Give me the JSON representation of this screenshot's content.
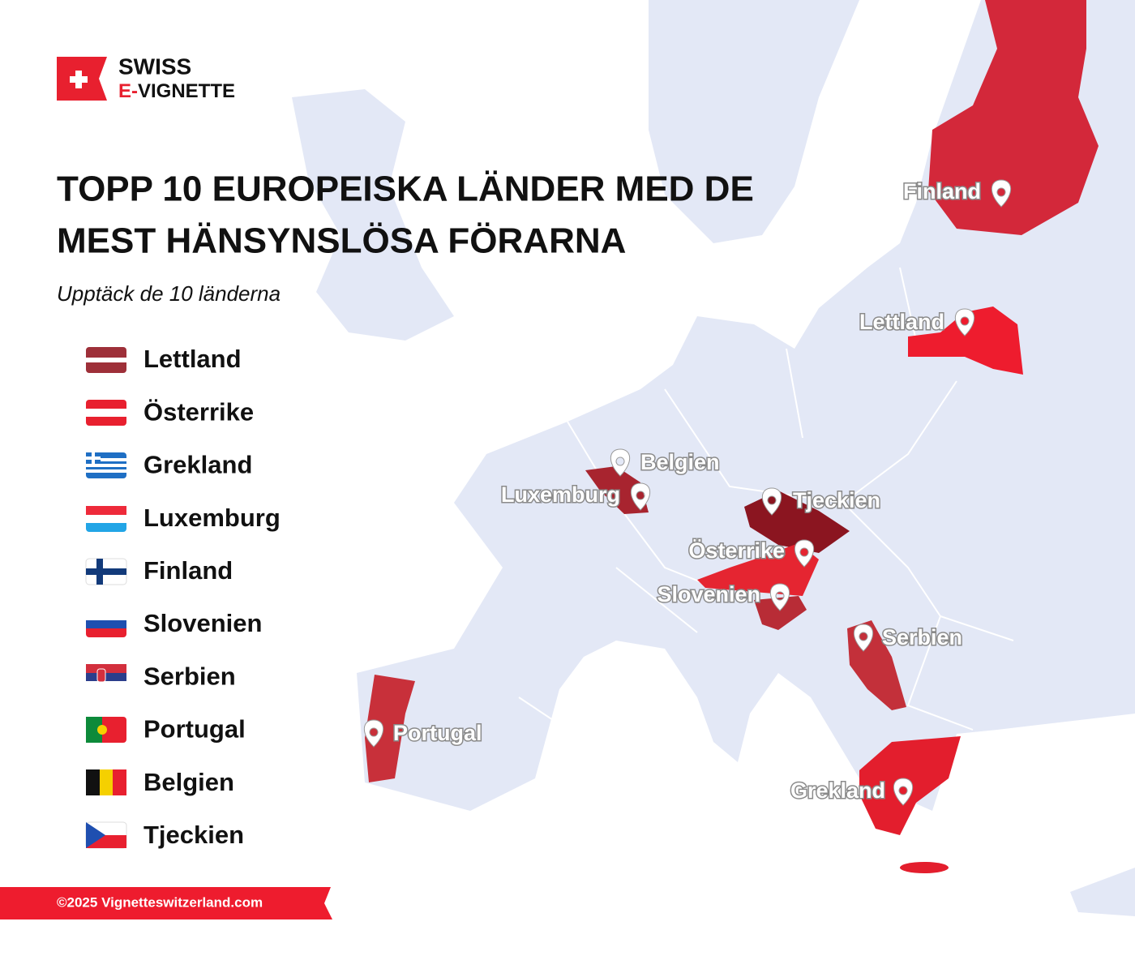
{
  "logo": {
    "line1": "SWISS",
    "line2_prefix": "E-",
    "line2_rest": "VIGNETTE"
  },
  "title_lines": [
    "TOPP 10 EUROPEISKA LÄNDER MED DE",
    "MEST HÄNSYNSLÖSA FÖRARNA"
  ],
  "subtitle": "Upptäck de 10 länderna",
  "legend": [
    "Lettland",
    "Österrike",
    "Grekland",
    "Luxemburg",
    "Finland",
    "Slovenien",
    "Serbien",
    "Portugal",
    "Belgien",
    "Tjeckien"
  ],
  "map_labels": [
    "Finland",
    "Lettland",
    "Belgien",
    "Luxemburg",
    "Tjeckien",
    "Österrike",
    "Slovenien",
    "Serbien",
    "Portugal",
    "Grekland"
  ],
  "footer": "©2025 Vignetteswitzerland.com"
}
